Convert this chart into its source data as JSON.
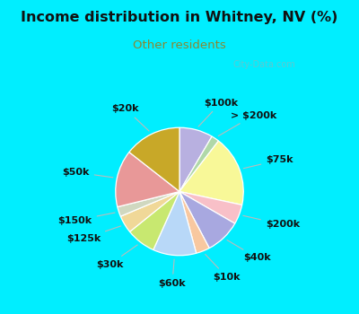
{
  "title": "Income distribution in Whitney, NV (%)",
  "subtitle": "Other residents",
  "title_color": "#111111",
  "subtitle_color": "#888833",
  "bg_cyan": "#00eeff",
  "bg_chart": "#dff2ec",
  "watermark": "City-Data.com",
  "segments": [
    {
      "label": "$100k",
      "value": 8.5,
      "color": "#b8b0e0"
    },
    {
      "label": "> $200k",
      "value": 2.0,
      "color": "#b0d8a8"
    },
    {
      "label": "$75k",
      "value": 18.0,
      "color": "#f8f898"
    },
    {
      "label": "$200k",
      "value": 5.0,
      "color": "#f8c0c8"
    },
    {
      "label": "$40k",
      "value": 9.0,
      "color": "#a8a8e0"
    },
    {
      "label": "$10k",
      "value": 3.5,
      "color": "#f8c8a0"
    },
    {
      "label": "$60k",
      "value": 11.0,
      "color": "#b8d8f8"
    },
    {
      "label": "$30k",
      "value": 7.5,
      "color": "#c8e870"
    },
    {
      "label": "$125k",
      "value": 4.5,
      "color": "#f0d898"
    },
    {
      "label": "$150k",
      "value": 2.5,
      "color": "#d0d8c0"
    },
    {
      "label": "$50k",
      "value": 14.5,
      "color": "#e89898"
    },
    {
      "label": "$20k",
      "value": 14.5,
      "color": "#c8a828"
    }
  ],
  "label_fontsize": 8,
  "label_color": "#111111",
  "title_fontsize": 11.5,
  "subtitle_fontsize": 9.5
}
